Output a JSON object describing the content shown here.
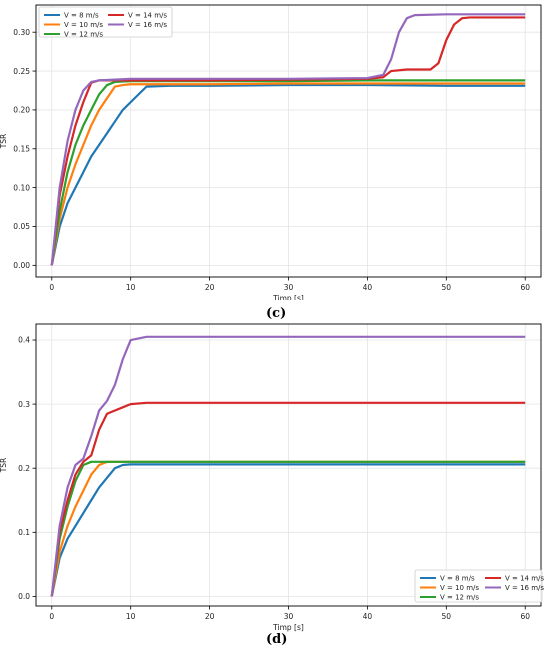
{
  "figure": {
    "panel_c_label": "(c)",
    "panel_d_label": "(d)"
  },
  "chart_data": [
    {
      "type": "line",
      "panel": "(c)",
      "title": "",
      "xlabel": "Timp [s]",
      "ylabel": "TSR",
      "xlim": [
        -2,
        62
      ],
      "ylim": [
        -0.015,
        0.335
      ],
      "xticks": [
        0,
        10,
        20,
        30,
        40,
        50,
        60
      ],
      "yticks": [
        0.0,
        0.05,
        0.1,
        0.15,
        0.2,
        0.25,
        0.3
      ],
      "ytick_labels": [
        "0.00",
        "0.05",
        "0.10",
        "0.15",
        "0.20",
        "0.25",
        "0.30"
      ],
      "grid": true,
      "legend": {
        "placement": "top-left",
        "columns": 2
      },
      "series": [
        {
          "name": "V = 8 m/s",
          "color": "#1f77b4",
          "x": [
            0,
            1,
            2,
            3,
            4,
            5,
            6,
            7,
            8,
            9,
            10,
            11,
            12,
            15,
            20,
            30,
            40,
            50,
            60
          ],
          "y": [
            0.0,
            0.05,
            0.08,
            0.1,
            0.12,
            0.14,
            0.155,
            0.17,
            0.185,
            0.2,
            0.21,
            0.22,
            0.23,
            0.231,
            0.231,
            0.232,
            0.232,
            0.231,
            0.231
          ]
        },
        {
          "name": "V = 10 m/s",
          "color": "#ff7f0e",
          "x": [
            0,
            1,
            2,
            3,
            4,
            5,
            6,
            7,
            8,
            9,
            10,
            15,
            20,
            30,
            40,
            50,
            60
          ],
          "y": [
            0.0,
            0.06,
            0.1,
            0.13,
            0.155,
            0.18,
            0.2,
            0.215,
            0.23,
            0.232,
            0.233,
            0.233,
            0.233,
            0.234,
            0.234,
            0.234,
            0.234
          ]
        },
        {
          "name": "V = 12 m/s",
          "color": "#2ca02c",
          "x": [
            0,
            1,
            2,
            3,
            4,
            5,
            6,
            7,
            8,
            10,
            20,
            30,
            40,
            50,
            60
          ],
          "y": [
            0.0,
            0.07,
            0.12,
            0.155,
            0.18,
            0.2,
            0.22,
            0.232,
            0.236,
            0.237,
            0.237,
            0.237,
            0.238,
            0.238,
            0.238
          ]
        },
        {
          "name": "V = 14 m/s",
          "color": "#d62728",
          "x": [
            0,
            1,
            2,
            3,
            4,
            5,
            6,
            10,
            20,
            30,
            40,
            42,
            43,
            45,
            48,
            49,
            50,
            51,
            52,
            53,
            55,
            60
          ],
          "y": [
            0.0,
            0.09,
            0.14,
            0.18,
            0.21,
            0.235,
            0.238,
            0.238,
            0.238,
            0.239,
            0.24,
            0.242,
            0.25,
            0.252,
            0.252,
            0.26,
            0.29,
            0.31,
            0.318,
            0.319,
            0.319,
            0.319
          ]
        },
        {
          "name": "V = 16 m/s",
          "color": "#9467bd",
          "x": [
            0,
            1,
            2,
            3,
            4,
            5,
            6,
            10,
            20,
            30,
            40,
            42,
            43,
            44,
            45,
            46,
            50,
            55,
            60
          ],
          "y": [
            0.0,
            0.1,
            0.16,
            0.2,
            0.225,
            0.236,
            0.238,
            0.24,
            0.24,
            0.24,
            0.241,
            0.245,
            0.265,
            0.3,
            0.318,
            0.322,
            0.323,
            0.323,
            0.323
          ]
        }
      ]
    },
    {
      "type": "line",
      "panel": "(d)",
      "title": "",
      "xlabel": "Timp [s]",
      "ylabel": "TSR",
      "xlim": [
        -2,
        62
      ],
      "ylim": [
        -0.015,
        0.425
      ],
      "xticks": [
        0,
        10,
        20,
        30,
        40,
        50,
        60
      ],
      "yticks": [
        0.0,
        0.1,
        0.2,
        0.3,
        0.4
      ],
      "ytick_labels": [
        "0.0",
        "0.1",
        "0.2",
        "0.3",
        "0.4"
      ],
      "grid": true,
      "legend": {
        "placement": "bottom-right",
        "columns": 2
      },
      "series": [
        {
          "name": "V = 8 m/s",
          "color": "#1f77b4",
          "x": [
            0,
            1,
            2,
            3,
            4,
            5,
            6,
            7,
            8,
            9,
            10,
            15,
            20,
            30,
            40,
            50,
            60
          ],
          "y": [
            0.0,
            0.06,
            0.09,
            0.11,
            0.13,
            0.15,
            0.17,
            0.185,
            0.2,
            0.205,
            0.206,
            0.206,
            0.206,
            0.206,
            0.206,
            0.206,
            0.206
          ]
        },
        {
          "name": "V = 10 m/s",
          "color": "#ff7f0e",
          "x": [
            0,
            1,
            2,
            3,
            4,
            5,
            6,
            7,
            8,
            10,
            20,
            30,
            40,
            50,
            60
          ],
          "y": [
            0.0,
            0.07,
            0.11,
            0.14,
            0.165,
            0.19,
            0.205,
            0.21,
            0.21,
            0.21,
            0.21,
            0.21,
            0.21,
            0.21,
            0.21
          ]
        },
        {
          "name": "V = 12 m/s",
          "color": "#2ca02c",
          "x": [
            0,
            1,
            2,
            3,
            4,
            5,
            6,
            10,
            20,
            30,
            40,
            50,
            60
          ],
          "y": [
            0.0,
            0.09,
            0.14,
            0.18,
            0.205,
            0.21,
            0.21,
            0.21,
            0.21,
            0.21,
            0.21,
            0.21,
            0.21
          ]
        },
        {
          "name": "V = 14 m/s",
          "color": "#d62728",
          "x": [
            0,
            1,
            2,
            3,
            4,
            5,
            6,
            7,
            8,
            9,
            10,
            12,
            20,
            30,
            40,
            50,
            60
          ],
          "y": [
            0.0,
            0.1,
            0.15,
            0.19,
            0.21,
            0.22,
            0.26,
            0.285,
            0.29,
            0.295,
            0.3,
            0.302,
            0.302,
            0.302,
            0.302,
            0.302,
            0.302
          ]
        },
        {
          "name": "V = 16 m/s",
          "color": "#9467bd",
          "x": [
            0,
            1,
            2,
            3,
            4,
            5,
            6,
            7,
            8,
            9,
            10,
            12,
            20,
            30,
            40,
            50,
            60
          ],
          "y": [
            0.0,
            0.11,
            0.17,
            0.205,
            0.215,
            0.25,
            0.29,
            0.305,
            0.33,
            0.37,
            0.4,
            0.405,
            0.405,
            0.405,
            0.405,
            0.405,
            0.405
          ]
        }
      ]
    }
  ]
}
